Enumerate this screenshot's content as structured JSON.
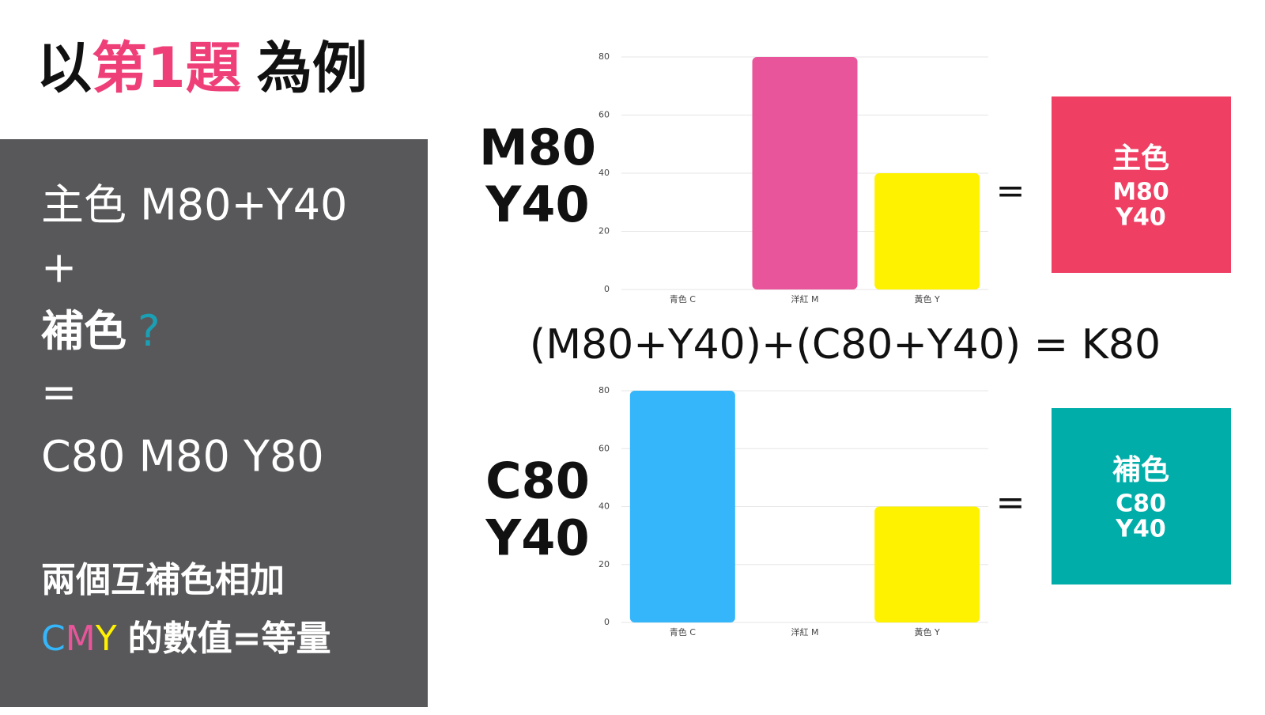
{
  "title": {
    "prefix": "以",
    "highlight": "第1題",
    "suffix": "為例"
  },
  "panel": {
    "lines": [
      "主色 M80+Y40",
      "+"
    ],
    "complement": "補色",
    "question": "?",
    "equals": "=",
    "result": "C80  M80 Y80",
    "note": "兩個互補色相加",
    "cmy": [
      "C",
      "M",
      "Y"
    ],
    "note_end": "的數值=等量"
  },
  "formula": "(M80+Y40)+(C80+Y40) = K80",
  "chart_data": [
    {
      "type": "bar",
      "label": [
        "M80",
        "Y40"
      ],
      "categories": [
        "青色 C",
        "洋紅 M",
        "黃色 Y"
      ],
      "values": [
        0,
        80,
        40
      ],
      "colors": [
        "#35b6fb",
        "#e8559a",
        "#fff200"
      ],
      "ylim": [
        0,
        80
      ],
      "yticks": [
        0,
        20,
        40,
        60,
        80
      ],
      "grid": true,
      "equals": "=",
      "result": {
        "name": "主色",
        "lines": [
          "M80",
          "Y40"
        ],
        "color": "#ef3f63"
      }
    },
    {
      "type": "bar",
      "label": [
        "C80",
        "Y40"
      ],
      "categories": [
        "青色 C",
        "洋紅 M",
        "黃色 Y"
      ],
      "values": [
        80,
        0,
        40
      ],
      "colors": [
        "#35b6fb",
        "#e8559a",
        "#fff200"
      ],
      "ylim": [
        0,
        80
      ],
      "yticks": [
        0,
        20,
        40,
        60,
        80
      ],
      "grid": true,
      "equals": "=",
      "result": {
        "name": "補色",
        "lines": [
          "C80",
          "Y40"
        ],
        "color": "#00ada9"
      }
    }
  ]
}
